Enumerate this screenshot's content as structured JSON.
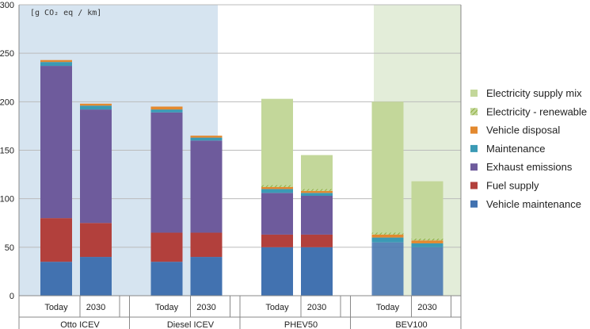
{
  "chart_data": {
    "type": "bar",
    "stacked": true,
    "unit_label": "[g CO₂ eq / km]",
    "ylim": [
      0,
      300
    ],
    "yticks": [
      0,
      50,
      100,
      150,
      200,
      250,
      300
    ],
    "grid": true,
    "legend_position": "right",
    "groups": [
      {
        "name": "Otto ICEV",
        "bars": [
          "Today",
          "2030"
        ],
        "background": "#d6e4f0"
      },
      {
        "name": "Diesel ICEV",
        "bars": [
          "Today",
          "2030"
        ],
        "background": "#d6e4f0"
      },
      {
        "name": "PHEV50",
        "bars": [
          "Today",
          "2030"
        ],
        "background": "#ffffff"
      },
      {
        "name": "BEV100",
        "bars": [
          "Today",
          "2030"
        ],
        "background": "#e3edd9"
      }
    ],
    "categories": [
      "Otto ICEV Today",
      "Otto ICEV 2030",
      "Diesel ICEV Today",
      "Diesel ICEV 2030",
      "PHEV50 Today",
      "PHEV50 2030",
      "BEV100 Today",
      "BEV100 2030"
    ],
    "series": [
      {
        "name": "Vehicle maintenance",
        "color": "#4272b0",
        "values": [
          35,
          40,
          35,
          40,
          50,
          50,
          55,
          50
        ]
      },
      {
        "name": "Fuel supply",
        "color": "#b2403c",
        "values": [
          45,
          35,
          30,
          25,
          13,
          13,
          0,
          0
        ]
      },
      {
        "name": "Exhaust emissions",
        "color": "#6e5b9c",
        "values": [
          157,
          117,
          124,
          95,
          43,
          40,
          0,
          0
        ]
      },
      {
        "name": "Maintenance",
        "color": "#3b9ab5",
        "values": [
          4,
          4,
          3,
          3,
          4,
          3,
          5,
          4
        ]
      },
      {
        "name": "Vehicle disposal",
        "color": "#e3892f",
        "values": [
          2,
          2,
          3,
          2,
          2,
          2,
          3,
          3
        ]
      },
      {
        "name": "Electricity - renewable",
        "color": "#8fae3e",
        "pattern": "hatch",
        "values": [
          0,
          0,
          0,
          0,
          2,
          2,
          2,
          2
        ]
      },
      {
        "name": "Electricity supply mix",
        "color": "#c3d79a",
        "values": [
          0,
          0,
          0,
          0,
          89,
          35,
          135,
          59
        ]
      }
    ]
  }
}
